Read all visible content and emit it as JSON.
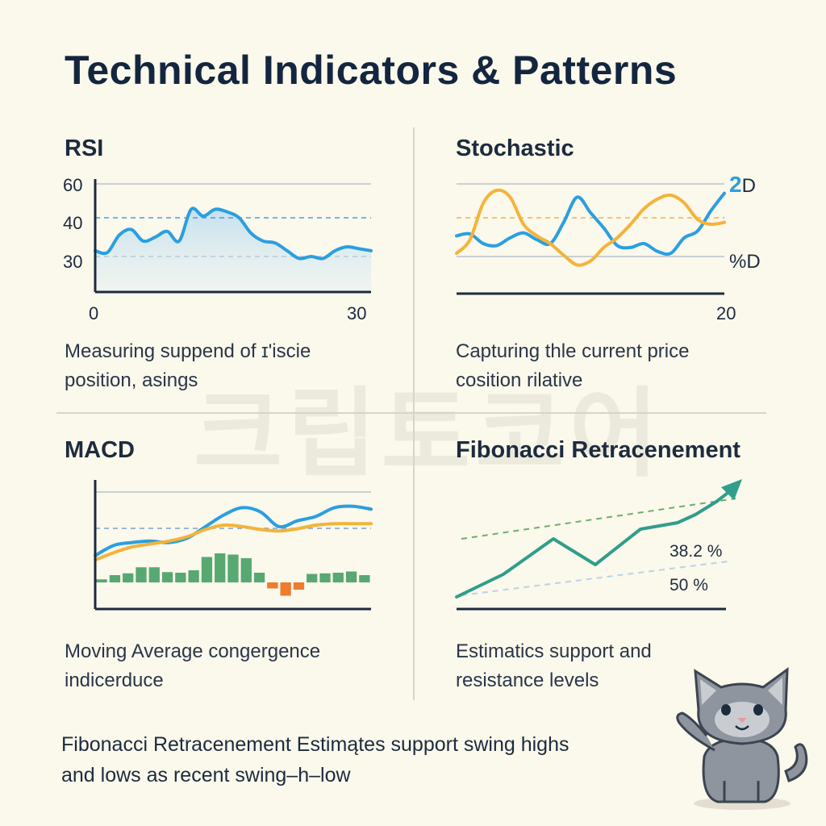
{
  "header": {
    "title": "Technical Indicators & Patterns"
  },
  "watermark": "크립토코어",
  "panels": {
    "rsi": {
      "title": "RSI",
      "desc_line1": "Measuring suppend of ɪ'iscie",
      "desc_line2": "position, asings"
    },
    "stochastic": {
      "title": "Stochastic",
      "desc_line1": "Capturing thle current price",
      "desc_line2": "cosition rilative"
    },
    "macd": {
      "title": "MACD",
      "desc_line1": "Moving Average congergence",
      "desc_line2": "indicerduce"
    },
    "fibonacci": {
      "title": "Fibonacci Retracenement",
      "desc_line1": "Estimatics support and",
      "desc_line2": "resistance levels"
    }
  },
  "footer": {
    "line1": "Fibonacci Retracenement Estimątes support swing highs",
    "line2": "and lows as recent swing–h–low"
  },
  "colors": {
    "blue": "#2a9fe0",
    "orange": "#f2b43a",
    "green": "#3a9a5c",
    "red": "#ee7b2e",
    "teal": "#2f9e8a",
    "axis": "#1d2b3e"
  },
  "chart_data": [
    {
      "id": "rsi",
      "type": "area",
      "title": "RSI",
      "yticks": [
        "60",
        "40",
        "30"
      ],
      "xticks": [
        "0",
        "30"
      ],
      "xlim": [
        0,
        30
      ],
      "reference_lines": [
        60,
        40,
        30
      ],
      "series": [
        {
          "values": [
            31.5,
            31,
            35.5,
            37,
            34,
            35,
            36.5,
            34,
            45,
            41,
            45,
            43.5,
            40,
            36,
            34,
            33.5,
            31.5,
            29.5,
            30,
            29.5,
            31.5,
            32.5,
            32,
            31.5
          ]
        }
      ]
    },
    {
      "id": "stochastic",
      "type": "line",
      "title": "Stochastic",
      "series_labels": [
        "2D",
        "%D"
      ],
      "xticks": [
        "20"
      ],
      "series": [
        {
          "name": "2D",
          "values": [
            48,
            50,
            40,
            38,
            46,
            51,
            44,
            40,
            62,
            88,
            72,
            56,
            38,
            36,
            40,
            32,
            30,
            46,
            53,
            74,
            92
          ]
        },
        {
          "name": "%D",
          "values": [
            30,
            44,
            82,
            95,
            88,
            60,
            48,
            40,
            28,
            18,
            22,
            36,
            46,
            60,
            76,
            86,
            90,
            82,
            65,
            60,
            62
          ]
        }
      ]
    },
    {
      "id": "macd",
      "type": "line",
      "title": "MACD",
      "series": [
        {
          "name": "blue",
          "values": [
            0.18,
            0.32,
            0.36,
            0.38,
            0.36,
            0.42,
            0.58,
            0.74,
            0.84,
            0.78,
            0.58,
            0.66,
            0.72,
            0.84,
            0.86,
            0.82
          ]
        },
        {
          "name": "orange",
          "values": [
            0.12,
            0.22,
            0.3,
            0.34,
            0.38,
            0.44,
            0.54,
            0.6,
            0.58,
            0.54,
            0.52,
            0.55,
            0.6,
            0.62,
            0.62,
            0.62
          ]
        }
      ],
      "histogram": [
        0.05,
        0.12,
        0.15,
        0.25,
        0.25,
        0.17,
        0.16,
        0.2,
        0.42,
        0.48,
        0.46,
        0.4,
        0.16,
        -0.1,
        -0.22,
        -0.12,
        0.14,
        0.15,
        0.16,
        0.18,
        0.12
      ]
    },
    {
      "id": "fibonacci",
      "type": "line",
      "title": "Fibonacci Retracenement",
      "levels": [
        {
          "label": "38.2 %"
        },
        {
          "label": "50 %"
        }
      ],
      "series": [
        {
          "values": [
            0.0,
            0.2,
            0.45,
            0.72,
            0.35,
            0.5,
            0.6,
            0.8,
            1.0
          ]
        }
      ]
    }
  ]
}
